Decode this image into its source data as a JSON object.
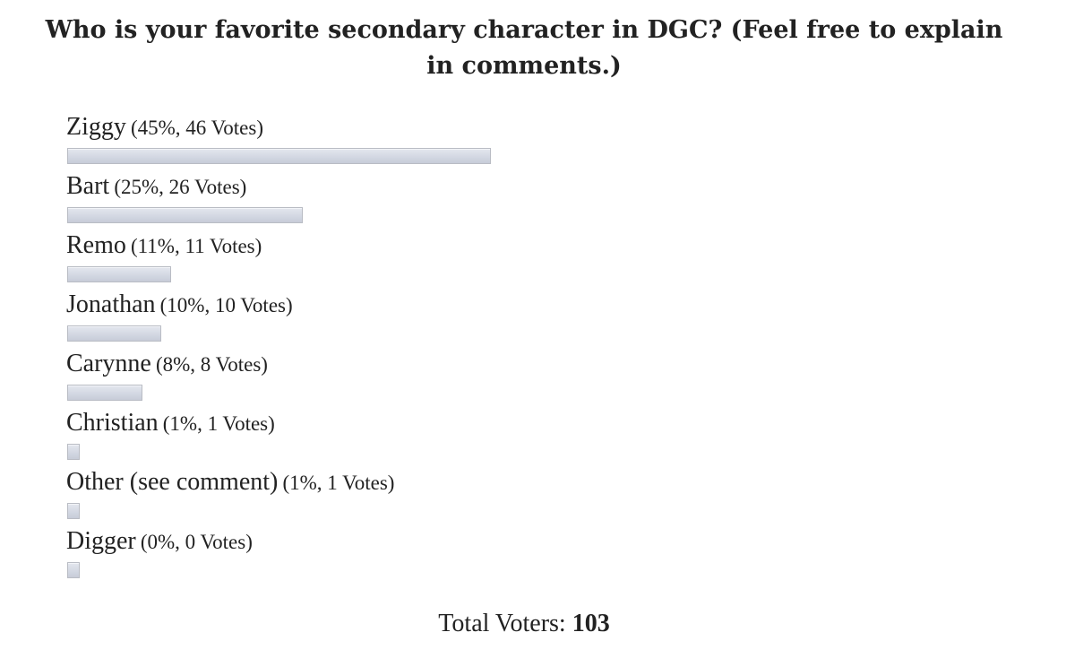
{
  "poll": {
    "title": "Who is your favorite secondary character in DGC? (Feel free to explain in comments.)",
    "total_label": "Total Voters:",
    "total_value": "103"
  },
  "chart_data": {
    "type": "bar",
    "orientation": "horizontal",
    "title": "Who is your favorite secondary character in DGC? (Feel free to explain in comments.)",
    "categories": [
      "Ziggy",
      "Bart",
      "Remo",
      "Jonathan",
      "Carynne",
      "Christian",
      "Other (see comment)",
      "Digger"
    ],
    "values": [
      45,
      25,
      11,
      10,
      8,
      1,
      1,
      0
    ],
    "votes": [
      46,
      26,
      11,
      10,
      8,
      1,
      1,
      0
    ],
    "stats_labels": [
      "(45%, 46 Votes)",
      "(25%, 26 Votes)",
      "(11%, 11 Votes)",
      "(10%, 10 Votes)",
      "(8%, 8 Votes)",
      "(1%, 1 Votes)",
      "(1%, 1 Votes)",
      "(0%, 0 Votes)"
    ],
    "xlim": [
      0,
      100
    ],
    "bar_color": "#d3d8e3",
    "bar_border_color": "#b9bcc4",
    "grid": false,
    "legend": "none",
    "total_voters": 103
  }
}
